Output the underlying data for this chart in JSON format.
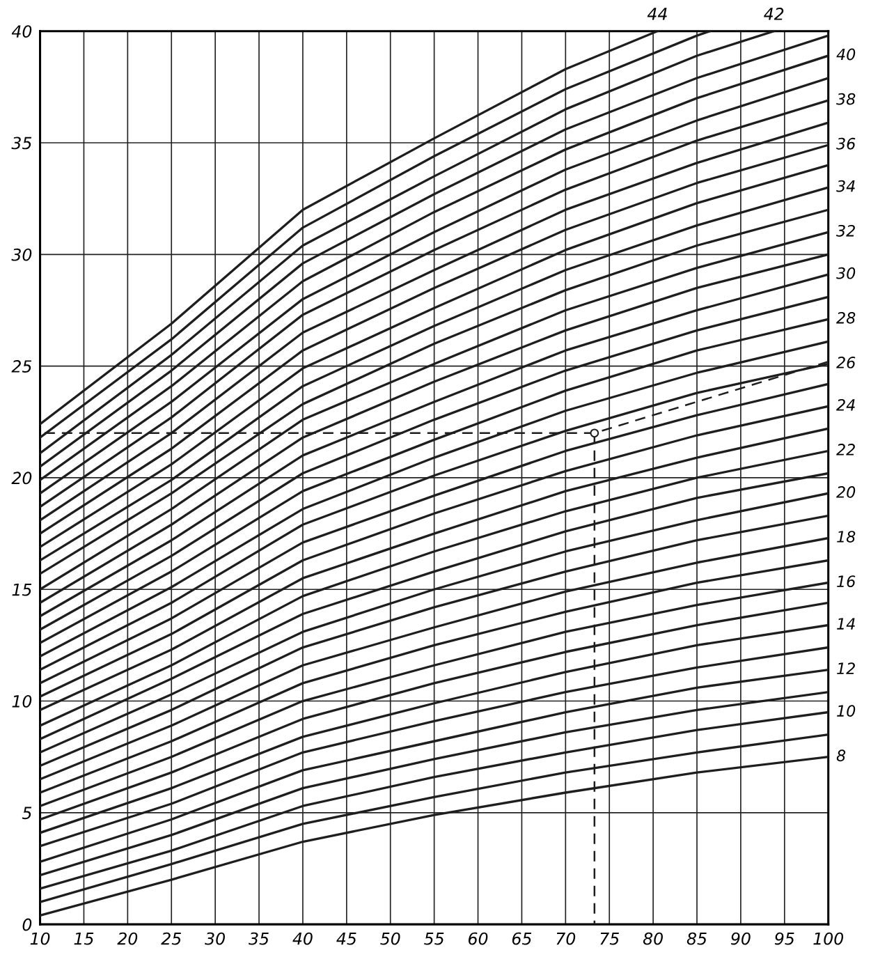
{
  "chart_data": {
    "type": "line",
    "xlim": [
      10,
      100
    ],
    "ylim": [
      0,
      40
    ],
    "xticks": [
      10,
      15,
      20,
      25,
      30,
      35,
      40,
      45,
      50,
      55,
      60,
      65,
      70,
      75,
      80,
      85,
      90,
      95,
      100
    ],
    "yticks": [
      0,
      5,
      10,
      15,
      20,
      25,
      30,
      35,
      40
    ],
    "grid": true,
    "marker": "none",
    "line_style": "solid",
    "x": [
      10,
      25,
      40,
      55,
      70,
      85,
      100
    ],
    "series": [
      {
        "name": "8",
        "color": "#1e1e1e",
        "values": [
          0.4,
          2.0,
          3.7,
          4.9,
          5.9,
          6.8,
          7.5
        ]
      },
      {
        "color": "#1e1e1e",
        "values": [
          1.0,
          2.7,
          4.5,
          5.7,
          6.8,
          7.7,
          8.5
        ]
      },
      {
        "name": "10",
        "color": "#1e1e1e",
        "values": [
          1.6,
          3.3,
          5.3,
          6.6,
          7.7,
          8.7,
          9.5
        ]
      },
      {
        "color": "#1e1e1e",
        "values": [
          2.2,
          4.0,
          6.1,
          7.4,
          8.6,
          9.6,
          10.4
        ]
      },
      {
        "name": "12",
        "color": "#1e1e1e",
        "values": [
          2.8,
          4.7,
          6.9,
          8.2,
          9.5,
          10.6,
          11.4
        ]
      },
      {
        "color": "#1e1e1e",
        "values": [
          3.5,
          5.4,
          7.7,
          9.1,
          10.4,
          11.5,
          12.4
        ]
      },
      {
        "name": "14",
        "color": "#1e1e1e",
        "values": [
          4.1,
          6.1,
          8.4,
          9.9,
          11.3,
          12.5,
          13.4
        ]
      },
      {
        "color": "#1e1e1e",
        "values": [
          4.7,
          6.8,
          9.2,
          10.8,
          12.2,
          13.4,
          14.4
        ]
      },
      {
        "name": "16",
        "color": "#1e1e1e",
        "values": [
          5.3,
          7.5,
          10.0,
          11.6,
          13.1,
          14.3,
          15.3
        ]
      },
      {
        "color": "#1e1e1e",
        "values": [
          5.9,
          8.2,
          10.8,
          12.5,
          14.0,
          15.3,
          16.3
        ]
      },
      {
        "name": "18",
        "color": "#1e1e1e",
        "values": [
          6.5,
          8.9,
          11.6,
          13.3,
          14.9,
          16.2,
          17.3
        ]
      },
      {
        "color": "#1e1e1e",
        "values": [
          7.1,
          9.6,
          12.4,
          14.2,
          15.8,
          17.2,
          18.3
        ]
      },
      {
        "name": "20",
        "color": "#1e1e1e",
        "values": [
          7.7,
          10.3,
          13.1,
          15.0,
          16.7,
          18.1,
          19.3
        ]
      },
      {
        "color": "#1e1e1e",
        "values": [
          8.3,
          11.0,
          13.9,
          15.8,
          17.6,
          19.1,
          20.2
        ]
      },
      {
        "name": "22",
        "color": "#1e1e1e",
        "values": [
          8.9,
          11.6,
          14.7,
          16.7,
          18.5,
          20.0,
          21.2
        ]
      },
      {
        "color": "#1e1e1e",
        "values": [
          9.6,
          12.3,
          15.5,
          17.5,
          19.4,
          20.9,
          22.2
        ]
      },
      {
        "name": "24",
        "color": "#1e1e1e",
        "values": [
          10.2,
          13.0,
          16.3,
          18.4,
          20.3,
          21.9,
          23.2
        ]
      },
      {
        "color": "#1e1e1e",
        "values": [
          10.8,
          13.7,
          17.1,
          19.2,
          21.2,
          22.8,
          24.2
        ]
      },
      {
        "name": "26",
        "color": "#1e1e1e",
        "values": [
          11.4,
          14.4,
          17.9,
          20.1,
          22.1,
          23.8,
          25.1
        ]
      },
      {
        "color": "#1e1e1e",
        "values": [
          12.0,
          15.1,
          18.6,
          20.9,
          23.0,
          24.7,
          26.1
        ]
      },
      {
        "name": "28",
        "color": "#1e1e1e",
        "values": [
          12.6,
          15.8,
          19.4,
          21.7,
          23.9,
          25.7,
          27.1
        ]
      },
      {
        "color": "#1e1e1e",
        "values": [
          13.2,
          16.5,
          20.2,
          22.6,
          24.8,
          26.6,
          28.1
        ]
      },
      {
        "name": "30",
        "color": "#1e1e1e",
        "values": [
          13.8,
          17.2,
          21.0,
          23.4,
          25.7,
          27.5,
          29.1
        ]
      },
      {
        "color": "#1e1e1e",
        "values": [
          14.4,
          17.9,
          21.8,
          24.3,
          26.6,
          28.5,
          30.0
        ]
      },
      {
        "name": "32",
        "color": "#1e1e1e",
        "values": [
          15.0,
          18.6,
          22.6,
          25.1,
          27.5,
          29.4,
          31.0
        ]
      },
      {
        "color": "#1e1e1e",
        "values": [
          15.7,
          19.3,
          23.3,
          26.0,
          28.4,
          30.4,
          32.0
        ]
      },
      {
        "name": "34",
        "color": "#1e1e1e",
        "values": [
          16.3,
          19.9,
          24.1,
          26.8,
          29.3,
          31.3,
          33.0
        ]
      },
      {
        "color": "#1e1e1e",
        "values": [
          16.9,
          20.6,
          24.9,
          27.6,
          30.2,
          32.3,
          34.0
        ]
      },
      {
        "name": "36",
        "color": "#1e1e1e",
        "values": [
          17.5,
          21.3,
          25.7,
          28.5,
          31.1,
          33.2,
          34.9
        ]
      },
      {
        "color": "#1e1e1e",
        "values": [
          18.1,
          22.0,
          26.5,
          29.3,
          32.0,
          34.1,
          35.9
        ]
      },
      {
        "name": "38",
        "color": "#1e1e1e",
        "values": [
          18.7,
          22.7,
          27.3,
          30.2,
          32.9,
          35.1,
          36.9
        ]
      },
      {
        "color": "#1e1e1e",
        "values": [
          19.3,
          23.4,
          28.0,
          31.0,
          33.8,
          36.0,
          37.9
        ]
      },
      {
        "name": "40",
        "color": "#1e1e1e",
        "values": [
          19.9,
          24.1,
          28.8,
          31.9,
          34.7,
          37.0,
          38.9
        ]
      },
      {
        "color": "#1e1e1e",
        "values": [
          20.5,
          24.8,
          29.6,
          32.7,
          35.6,
          37.9,
          39.8
        ]
      },
      {
        "name": "42",
        "color": "#1e1e1e",
        "x": [
          10,
          25,
          40,
          55,
          70,
          85,
          93.8
        ],
        "values": [
          21.1,
          25.5,
          30.4,
          33.5,
          36.5,
          38.9,
          40
        ]
      },
      {
        "color": "#1e1e1e",
        "x": [
          10,
          25,
          40,
          55,
          70,
          85,
          86.5
        ],
        "values": [
          21.8,
          26.2,
          31.2,
          34.4,
          37.4,
          39.8,
          40
        ]
      },
      {
        "name": "44",
        "color": "#1e1e1e",
        "x": [
          10,
          25,
          40,
          55,
          70,
          80.5
        ],
        "values": [
          22.4,
          26.9,
          32.0,
          35.2,
          38.3,
          40
        ]
      },
      {
        "color": "#1e1e1e",
        "line_style": "dashed",
        "x": [
          100,
          73.3
        ],
        "values": [
          25.2,
          22.0
        ]
      },
      {
        "color": "#1e1e1e",
        "line_style": "dashed",
        "x": [
          73.3,
          10
        ],
        "values": [
          22.0,
          22.0
        ]
      },
      {
        "color": "#1e1e1e",
        "line_style": "dashed",
        "x": [
          73.3,
          73.3
        ],
        "values": [
          22.0,
          0
        ]
      },
      {
        "type": "scatter",
        "color": "#1e1e1e",
        "marker": "circle",
        "x": [
          73.3
        ],
        "values": [
          22.0
        ]
      }
    ]
  }
}
